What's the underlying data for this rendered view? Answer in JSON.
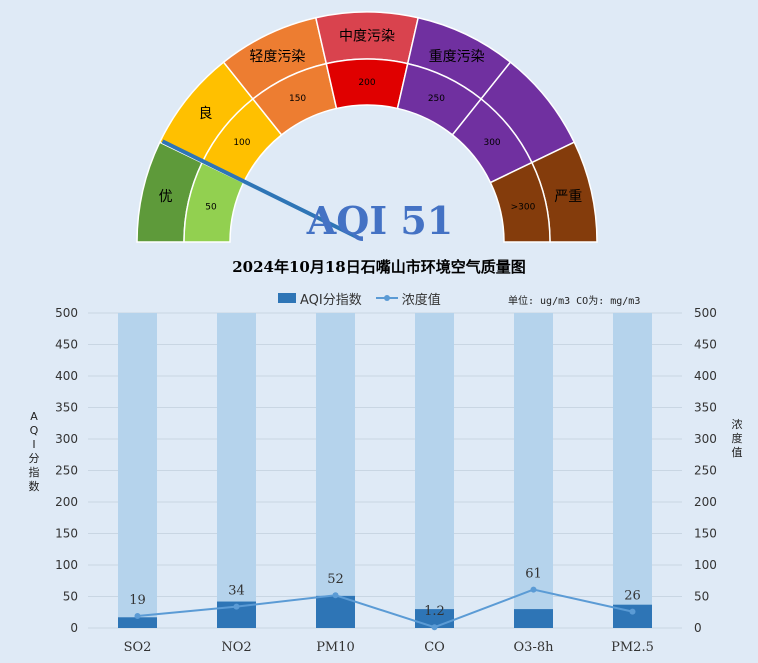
{
  "gauge": {
    "aqi_value": 51,
    "aqi_label_prefix": "AQI",
    "needle_value": 51,
    "max_value": 350,
    "bands": [
      {
        "outer_label": "优",
        "inner_label": "50",
        "from": 0,
        "to": 50,
        "outer_color": "#5e9a3a",
        "inner_color": "#92d050"
      },
      {
        "outer_label": "良",
        "inner_label": "100",
        "from": 50,
        "to": 100,
        "outer_color": "#ffc000",
        "inner_color": "#ffc000"
      },
      {
        "outer_label": "轻度污染",
        "inner_label": "150",
        "from": 100,
        "to": 150,
        "outer_color": "#ed7d31",
        "inner_color": "#ed7d31"
      },
      {
        "outer_label": "中度污染",
        "inner_label": "200",
        "from": 150,
        "to": 200,
        "outer_color": "#d9434e",
        "inner_color": "#e00000"
      },
      {
        "outer_label": "重度污染",
        "inner_label": "250",
        "from": 200,
        "to": 250,
        "outer_color": "#7030a0",
        "inner_color": "#7030a0"
      },
      {
        "outer_label": "",
        "inner_label": "300",
        "from": 250,
        "to": 300,
        "outer_color": "#7030a0",
        "inner_color": "#7030a0"
      },
      {
        "outer_label": "严重",
        "inner_label": ">300",
        "from": 300,
        "to": 350,
        "outer_color": "#843c0c",
        "inner_color": "#843c0c"
      }
    ]
  },
  "chart_data": {
    "type": "bar",
    "title": "2024年10月18日石嘴山市环境空气质量图",
    "categories": [
      "SO2",
      "NO2",
      "PM10",
      "CO",
      "O3-8h",
      "PM2.5"
    ],
    "series": [
      {
        "name": "AQI分指数",
        "type": "bar",
        "color": "#2e75b6",
        "values": [
          17,
          42,
          51,
          30,
          30,
          37
        ]
      },
      {
        "name": "浓度值",
        "type": "line",
        "color": "#5b9bd5",
        "values": [
          19,
          34,
          52,
          1.2,
          61,
          26
        ],
        "data_labels": [
          "19",
          "34",
          "52",
          "1.2",
          "61",
          "26"
        ]
      }
    ],
    "background_bar_value": 500,
    "background_bar_color": "#b5d3ec",
    "ylim": [
      0,
      500
    ],
    "y_ticks": [
      0,
      50,
      100,
      150,
      200,
      250,
      300,
      350,
      400,
      450,
      500
    ],
    "y2lim": [
      0,
      500
    ],
    "ylabel": "AQI分指数",
    "y2label": "浓度值",
    "grid": true,
    "legend_position": "top"
  },
  "unit_note": "单位: ug/m3  CO为: mg/m3"
}
